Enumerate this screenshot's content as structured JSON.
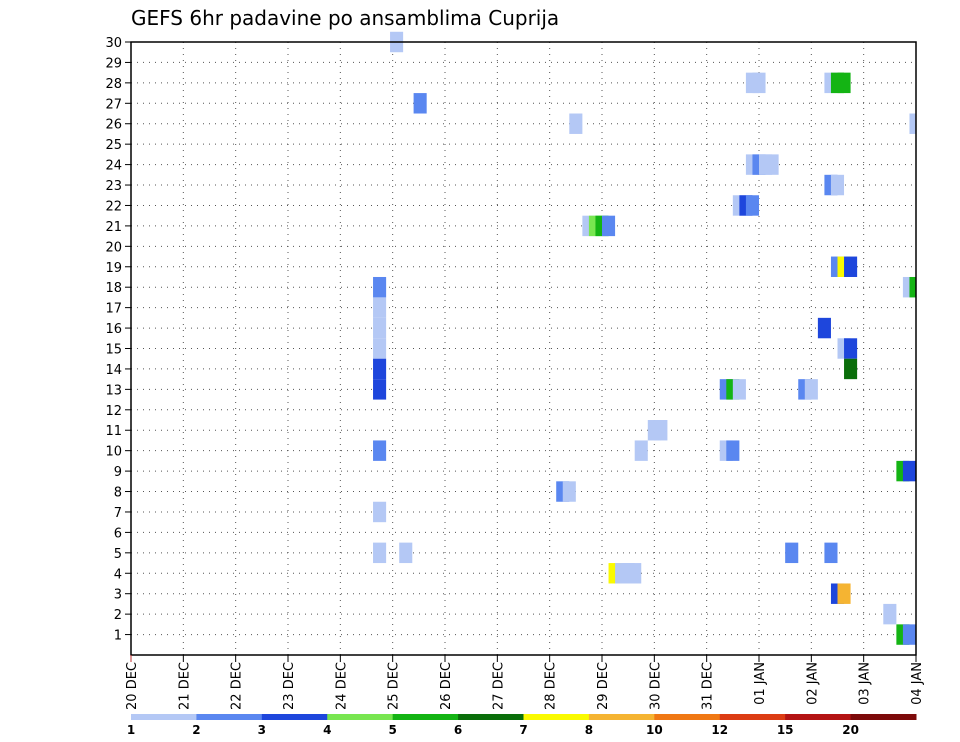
{
  "title": "GEFS 6hr padavine po ansamblima Cuprija",
  "chart_data": {
    "type": "heatmap",
    "title": "GEFS 6hr padavine po ansamblima Cuprija",
    "xlabel": "",
    "ylabel": "",
    "x_tick_labels": [
      "20 DEC",
      "21 DEC",
      "22 DEC",
      "23 DEC",
      "24 DEC",
      "25 DEC",
      "26 DEC",
      "27 DEC",
      "28 DEC",
      "29 DEC",
      "30 DEC",
      "31 DEC",
      "01 JAN",
      "02 JAN",
      "03 JAN",
      "04 JAN"
    ],
    "x_range_days": [
      0,
      15
    ],
    "y_tick_labels": [
      "1",
      "2",
      "3",
      "4",
      "5",
      "6",
      "7",
      "8",
      "9",
      "10",
      "11",
      "12",
      "13",
      "14",
      "15",
      "16",
      "17",
      "18",
      "19",
      "20",
      "21",
      "22",
      "23",
      "24",
      "25",
      "26",
      "27",
      "28",
      "29",
      "30"
    ],
    "y_range": [
      0,
      30
    ],
    "grid": true,
    "colorbar": {
      "colors": [
        "#b4c8f5",
        "#5a87f0",
        "#1e46dc",
        "#78e650",
        "#14b414",
        "#0a6e0a",
        "#fafa00",
        "#f5b432",
        "#f07814",
        "#dc3c14",
        "#b41414",
        "#7d0a0a"
      ],
      "tick_labels": [
        "1",
        "2",
        "3",
        "4",
        "5",
        "6",
        "7",
        "8",
        "10",
        "12",
        "15",
        "20"
      ]
    },
    "cells": [
      {
        "member": 30,
        "day": 4.95,
        "value": 1
      },
      {
        "member": 28,
        "day": 11.75,
        "value": 1
      },
      {
        "member": 28,
        "day": 11.875,
        "value": 1
      },
      {
        "member": 28,
        "day": 13.25,
        "value": 1
      },
      {
        "member": 28,
        "day": 13.375,
        "value": 5
      },
      {
        "member": 28,
        "day": 13.5,
        "value": 5
      },
      {
        "member": 27,
        "day": 5.4,
        "value": 2
      },
      {
        "member": 26,
        "day": 8.375,
        "value": 1
      },
      {
        "member": 26,
        "day": 14.875,
        "value": 1
      },
      {
        "member": 24,
        "day": 11.75,
        "value": 1
      },
      {
        "member": 24,
        "day": 11.875,
        "value": 2
      },
      {
        "member": 24,
        "day": 12.0,
        "value": 1
      },
      {
        "member": 24,
        "day": 12.125,
        "value": 1
      },
      {
        "member": 23,
        "day": 13.25,
        "value": 2
      },
      {
        "member": 23,
        "day": 13.375,
        "value": 1
      },
      {
        "member": 22,
        "day": 11.5,
        "value": 1
      },
      {
        "member": 22,
        "day": 11.625,
        "value": 3
      },
      {
        "member": 22,
        "day": 11.75,
        "value": 2
      },
      {
        "member": 21,
        "day": 8.625,
        "value": 1
      },
      {
        "member": 21,
        "day": 8.75,
        "value": 4
      },
      {
        "member": 21,
        "day": 8.875,
        "value": 5
      },
      {
        "member": 21,
        "day": 9.0,
        "value": 2
      },
      {
        "member": 19,
        "day": 13.375,
        "value": 2
      },
      {
        "member": 19,
        "day": 13.5,
        "value": 7
      },
      {
        "member": 19,
        "day": 13.625,
        "value": 3
      },
      {
        "member": 18,
        "day": 4.625,
        "value": 2
      },
      {
        "member": 18,
        "day": 14.75,
        "value": 1
      },
      {
        "member": 18,
        "day": 14.875,
        "value": 5
      },
      {
        "member": 17,
        "day": 4.625,
        "value": 1
      },
      {
        "member": 16,
        "day": 4.625,
        "value": 1
      },
      {
        "member": 16,
        "day": 13.125,
        "value": 3
      },
      {
        "member": 15,
        "day": 4.625,
        "value": 1
      },
      {
        "member": 15,
        "day": 13.5,
        "value": 1
      },
      {
        "member": 15,
        "day": 13.625,
        "value": 3
      },
      {
        "member": 14,
        "day": 4.625,
        "value": 3
      },
      {
        "member": 14,
        "day": 13.625,
        "value": 6
      },
      {
        "member": 13,
        "day": 4.625,
        "value": 3
      },
      {
        "member": 13,
        "day": 11.25,
        "value": 2
      },
      {
        "member": 13,
        "day": 11.375,
        "value": 5
      },
      {
        "member": 13,
        "day": 11.5,
        "value": 1
      },
      {
        "member": 13,
        "day": 12.75,
        "value": 2
      },
      {
        "member": 13,
        "day": 12.875,
        "value": 1
      },
      {
        "member": 11,
        "day": 9.875,
        "value": 1
      },
      {
        "member": 11,
        "day": 10.0,
        "value": 1
      },
      {
        "member": 10,
        "day": 4.625,
        "value": 2
      },
      {
        "member": 10,
        "day": 9.625,
        "value": 1
      },
      {
        "member": 10,
        "day": 11.25,
        "value": 1
      },
      {
        "member": 10,
        "day": 11.375,
        "value": 2
      },
      {
        "member": 9,
        "day": 14.625,
        "value": 5
      },
      {
        "member": 9,
        "day": 14.75,
        "value": 3
      },
      {
        "member": 8,
        "day": 8.125,
        "value": 2
      },
      {
        "member": 8,
        "day": 8.25,
        "value": 1
      },
      {
        "member": 7,
        "day": 4.625,
        "value": 1
      },
      {
        "member": 5,
        "day": 4.625,
        "value": 1
      },
      {
        "member": 5,
        "day": 5.125,
        "value": 1
      },
      {
        "member": 5,
        "day": 12.5,
        "value": 2
      },
      {
        "member": 5,
        "day": 13.25,
        "value": 2
      },
      {
        "member": 4,
        "day": 9.125,
        "value": 7
      },
      {
        "member": 4,
        "day": 9.25,
        "value": 1
      },
      {
        "member": 4,
        "day": 9.375,
        "value": 1
      },
      {
        "member": 4,
        "day": 9.5,
        "value": 1
      },
      {
        "member": 3,
        "day": 13.375,
        "value": 3
      },
      {
        "member": 3,
        "day": 13.5,
        "value": 8
      },
      {
        "member": 2,
        "day": 14.375,
        "value": 1
      },
      {
        "member": 1,
        "day": 14.625,
        "value": 5
      },
      {
        "member": 1,
        "day": 14.75,
        "value": 2
      }
    ]
  }
}
